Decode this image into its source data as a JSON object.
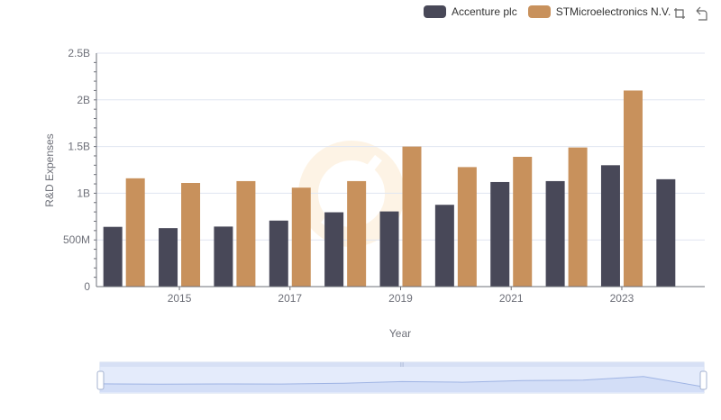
{
  "chart_data": {
    "type": "bar",
    "title": "",
    "xlabel": "Year",
    "ylabel": "R&D Expenses",
    "categories": [
      "2014",
      "2015",
      "2016",
      "2017",
      "2018",
      "2019",
      "2020",
      "2021",
      "2022",
      "2023",
      "2024"
    ],
    "x_tick_labels": [
      "2015",
      "2017",
      "2019",
      "2021",
      "2023"
    ],
    "y_tick_labels": [
      "0",
      "500M",
      "1B",
      "1.5B",
      "2B",
      "2.5B"
    ],
    "y_ticks": [
      0,
      500000000,
      1000000000,
      1500000000,
      2000000000,
      2500000000
    ],
    "ylim": [
      0,
      2500000000
    ],
    "legend_position": "top-right",
    "grid": true,
    "series": [
      {
        "name": "Accenture plc",
        "color": "#484858",
        "values": [
          640000000,
          626000000,
          643000000,
          707000000,
          796000000,
          805000000,
          876000000,
          1120000000,
          1130000000,
          1300000000,
          1150000000
        ]
      },
      {
        "name": "STMicroelectronics N.V.",
        "color": "#c8915c",
        "values": [
          1160000000,
          1110000000,
          1130000000,
          1060000000,
          1130000000,
          1500000000,
          1280000000,
          1390000000,
          1490000000,
          2100000000,
          null
        ]
      }
    ],
    "data_zoom": {
      "type": "slider",
      "start_percent": 0,
      "end_percent": 100
    }
  },
  "toolbox": {
    "icons": [
      "zoom-select-icon",
      "restore-icon"
    ]
  }
}
